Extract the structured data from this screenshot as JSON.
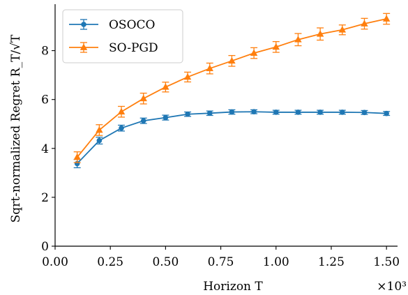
{
  "chart_data": {
    "type": "line",
    "title": "",
    "xlabel": "Horizon T",
    "ylabel": "Sqrt-normalized Regret R_T/√T",
    "x_multiplier": "×10³",
    "xlim": [
      0.0,
      1.55
    ],
    "ylim": [
      0,
      9.9
    ],
    "xticks": [
      "0.00",
      "0.25",
      "0.50",
      "0.75",
      "1.00",
      "1.25",
      "1.50"
    ],
    "yticks": [
      "0",
      "2",
      "4",
      "6",
      "8"
    ],
    "legend_position": "top-left",
    "grid": false,
    "x": [
      0.1,
      0.2,
      0.3,
      0.4,
      0.5,
      0.6,
      0.7,
      0.8,
      0.9,
      1.0,
      1.1,
      1.2,
      1.3,
      1.4,
      1.5
    ],
    "series": [
      {
        "name": "OSOCO",
        "color": "#1f77b4",
        "marker": "circle",
        "values": [
          3.38,
          4.32,
          4.83,
          5.13,
          5.26,
          5.4,
          5.44,
          5.49,
          5.5,
          5.48,
          5.48,
          5.48,
          5.48,
          5.47,
          5.43
        ],
        "errors": [
          0.17,
          0.14,
          0.12,
          0.11,
          0.1,
          0.09,
          0.09,
          0.09,
          0.08,
          0.08,
          0.08,
          0.08,
          0.08,
          0.08,
          0.08
        ]
      },
      {
        "name": "SO-PGD",
        "color": "#ff7f0e",
        "marker": "triangle",
        "values": [
          3.64,
          4.75,
          5.5,
          6.04,
          6.51,
          6.92,
          7.27,
          7.58,
          7.9,
          8.15,
          8.45,
          8.68,
          8.85,
          9.1,
          9.3
        ],
        "errors": [
          0.22,
          0.22,
          0.22,
          0.22,
          0.2,
          0.2,
          0.22,
          0.22,
          0.22,
          0.22,
          0.25,
          0.25,
          0.2,
          0.22,
          0.22
        ]
      }
    ]
  }
}
